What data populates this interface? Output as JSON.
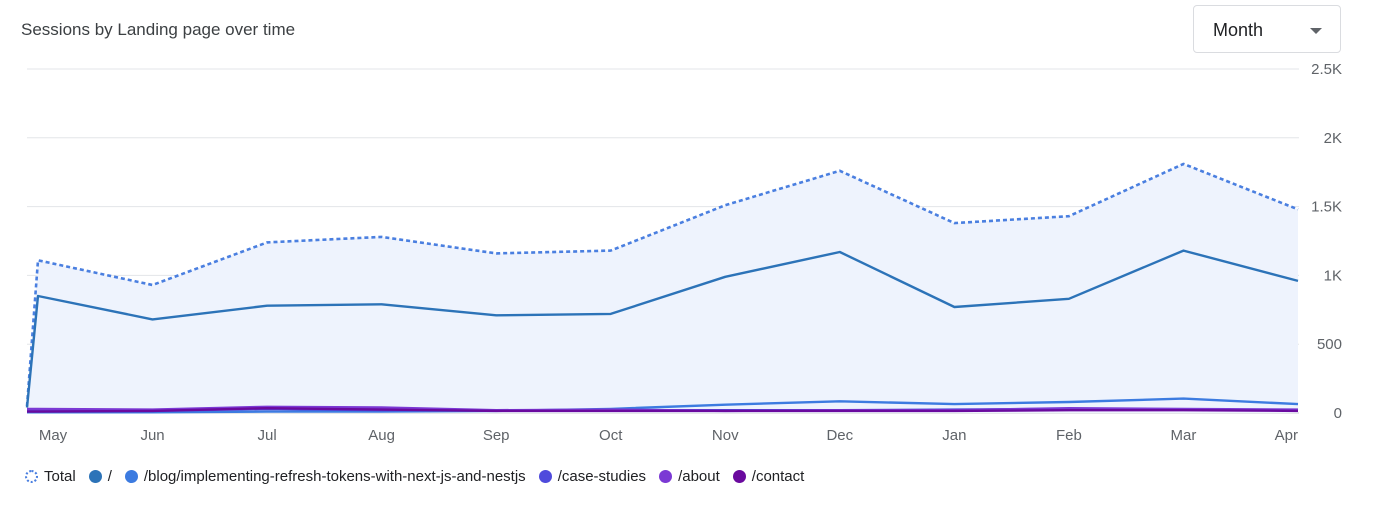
{
  "header": {
    "title": "Sessions by Landing page over time"
  },
  "period_select": {
    "value": "Month"
  },
  "legend": [
    {
      "label": "Total",
      "color": "#4a7fe0",
      "style": "dotted"
    },
    {
      "label": "/",
      "color": "#2c73b8",
      "style": "solid"
    },
    {
      "label": "/blog/implementing-refresh-tokens-with-next-js-and-nestjs",
      "color": "#3c7be0",
      "style": "solid"
    },
    {
      "label": "/case-studies",
      "color": "#4f4bdc",
      "style": "solid"
    },
    {
      "label": "/about",
      "color": "#7b39d4",
      "style": "solid"
    },
    {
      "label": "/contact",
      "color": "#6a0a9e",
      "style": "solid"
    }
  ],
  "chart_data": {
    "type": "line",
    "x_labels": [
      "May",
      "Jun",
      "Jul",
      "Aug",
      "Sep",
      "Oct",
      "Nov",
      "Dec",
      "Jan",
      "Feb",
      "Mar",
      "Apr"
    ],
    "y_ticks": [
      "0",
      "500",
      "1K",
      "1.5K",
      "2K",
      "2.5K"
    ],
    "ylim": [
      0,
      2500
    ],
    "grid": true,
    "legend_position": "bottom-left",
    "series": [
      {
        "name": "Total",
        "color": "#4a7fe0",
        "dash": "dotted",
        "fill": "#eef3fd",
        "start": 50,
        "values": [
          1110,
          930,
          1240,
          1280,
          1160,
          1180,
          1510,
          1760,
          1380,
          1430,
          1810,
          1480
        ]
      },
      {
        "name": "/",
        "color": "#2c73b8",
        "dash": "solid",
        "start": 40,
        "values": [
          850,
          680,
          780,
          790,
          710,
          720,
          990,
          1170,
          770,
          830,
          1180,
          960
        ]
      },
      {
        "name": "/blog/implementing-refresh-tokens-with-next-js-and-nestjs",
        "color": "#3c7be0",
        "dash": "solid",
        "values": [
          5,
          5,
          10,
          10,
          15,
          30,
          60,
          85,
          65,
          80,
          105,
          65
        ]
      },
      {
        "name": "/case-studies",
        "color": "#4f4bdc",
        "dash": "solid",
        "values": [
          15,
          15,
          30,
          20,
          20,
          20,
          20,
          20,
          25,
          30,
          25,
          20
        ]
      },
      {
        "name": "/about",
        "color": "#7b39d4",
        "dash": "solid",
        "values": [
          30,
          25,
          45,
          40,
          20,
          25,
          15,
          20,
          20,
          35,
          30,
          25
        ]
      },
      {
        "name": "/contact",
        "color": "#6a0a9e",
        "dash": "solid",
        "values": [
          10,
          15,
          35,
          25,
          15,
          15,
          15,
          15,
          15,
          20,
          20,
          15
        ]
      }
    ]
  }
}
